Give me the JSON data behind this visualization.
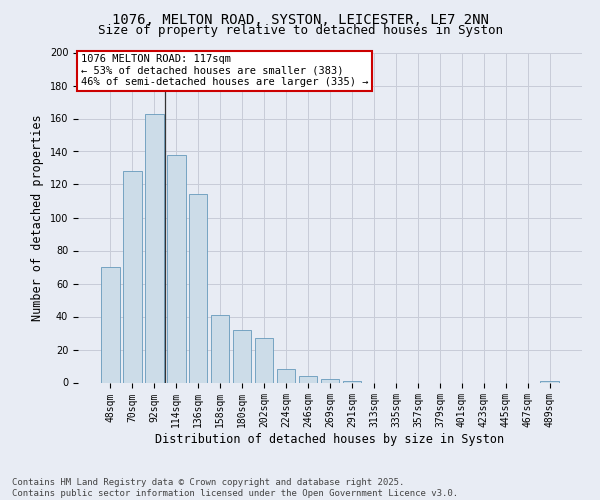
{
  "title_line1": "1076, MELTON ROAD, SYSTON, LEICESTER, LE7 2NN",
  "title_line2": "Size of property relative to detached houses in Syston",
  "xlabel": "Distribution of detached houses by size in Syston",
  "ylabel": "Number of detached properties",
  "categories": [
    "48sqm",
    "70sqm",
    "92sqm",
    "114sqm",
    "136sqm",
    "158sqm",
    "180sqm",
    "202sqm",
    "224sqm",
    "246sqm",
    "269sqm",
    "291sqm",
    "313sqm",
    "335sqm",
    "357sqm",
    "379sqm",
    "401sqm",
    "423sqm",
    "445sqm",
    "467sqm",
    "489sqm"
  ],
  "values": [
    70,
    128,
    163,
    138,
    114,
    41,
    32,
    27,
    8,
    4,
    2,
    1,
    0,
    0,
    0,
    0,
    0,
    0,
    0,
    0,
    1
  ],
  "bar_color": "#ccdce8",
  "bar_edge_color": "#6699bb",
  "grid_color": "#c8ccd8",
  "background_color": "#e8ecf4",
  "fig_background_color": "#e8ecf4",
  "annotation_text": "1076 MELTON ROAD: 117sqm\n← 53% of detached houses are smaller (383)\n46% of semi-detached houses are larger (335) →",
  "annotation_box_color": "#ffffff",
  "annotation_box_edge": "#cc0000",
  "vline_x_index": 2.5,
  "vline_color": "#333333",
  "ylim": [
    0,
    200
  ],
  "yticks": [
    0,
    20,
    40,
    60,
    80,
    100,
    120,
    140,
    160,
    180,
    200
  ],
  "footer_line1": "Contains HM Land Registry data © Crown copyright and database right 2025.",
  "footer_line2": "Contains public sector information licensed under the Open Government Licence v3.0.",
  "title_fontsize": 10,
  "subtitle_fontsize": 9,
  "axis_label_fontsize": 8.5,
  "tick_fontsize": 7,
  "annotation_fontsize": 7.5,
  "footer_fontsize": 6.5
}
